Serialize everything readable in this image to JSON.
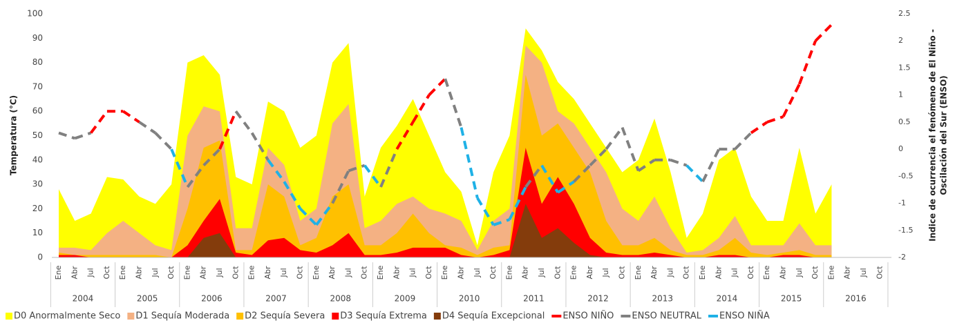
{
  "chart_data": {
    "type": "area",
    "ylabel": "Temperatura (°C)",
    "y2label": [
      "Indice de ocurrencia el fenómeno de El Niño -",
      "Oscilación del  Sur (ENSO)"
    ],
    "categories": [
      "Ene",
      "Abr",
      "Jul",
      "Oct",
      "Ene",
      "Abr",
      "Jul",
      "Oct",
      "Ene",
      "Abr",
      "Jul",
      "Oct",
      "Ene",
      "Abr",
      "Jul",
      "Oct",
      "Ene",
      "Abr",
      "Jul",
      "Oct",
      "Ene",
      "Abr",
      "Jul",
      "Oct",
      "Ene",
      "Abr",
      "Jul",
      "Oct",
      "Ene",
      "Abr",
      "Jul",
      "Oct",
      "Ene",
      "Abr",
      "Jul",
      "Oct",
      "Ene",
      "Abr",
      "Jul",
      "Oct",
      "Ene",
      "Abr",
      "Jul",
      "Oct",
      "Ene",
      "Abr",
      "Jul",
      "Oct",
      "Ene",
      "Abr",
      "Jul",
      "Oct"
    ],
    "years": [
      "2004",
      "2005",
      "2006",
      "2007",
      "2008",
      "2009",
      "2010",
      "2011",
      "2012",
      "2013",
      "2014",
      "2015",
      "2016"
    ],
    "ylim": [
      0,
      100
    ],
    "yticks": [
      0,
      10,
      20,
      30,
      40,
      50,
      60,
      70,
      80,
      90,
      100
    ],
    "y2lim": [
      -2,
      2.5
    ],
    "y2ticks": [
      -2,
      -1.5,
      -1,
      -0.5,
      0,
      0.5,
      1,
      1.5,
      2,
      2.5
    ],
    "series": [
      {
        "name": "D0 Anormalmente Seco",
        "color": "#ffff00",
        "values": [
          28,
          15,
          18,
          33,
          32,
          25,
          22,
          30,
          80,
          83,
          75,
          33,
          30,
          64,
          60,
          45,
          50,
          80,
          88,
          25,
          45,
          54,
          65,
          50,
          35,
          27,
          5,
          35,
          50,
          94,
          85,
          72,
          65,
          55,
          45,
          35,
          40,
          57,
          35,
          8,
          18,
          40,
          45,
          25,
          15,
          15,
          45,
          18,
          30,
          null,
          null,
          null
        ]
      },
      {
        "name": "D1 Sequía Moderada",
        "color": "#f4b183",
        "values": [
          4,
          4,
          3,
          10,
          15,
          10,
          5,
          3,
          50,
          62,
          60,
          12,
          12,
          45,
          38,
          15,
          20,
          55,
          63,
          12,
          15,
          22,
          25,
          20,
          18,
          15,
          3,
          15,
          20,
          87,
          80,
          60,
          55,
          45,
          35,
          20,
          15,
          25,
          12,
          2,
          3,
          8,
          17,
          5,
          5,
          5,
          14,
          5,
          5,
          null,
          null,
          null
        ]
      },
      {
        "name": "D2 Sequía Severa",
        "color": "#ffc000",
        "values": [
          2,
          1,
          1,
          1,
          1,
          1,
          1,
          0,
          20,
          45,
          48,
          3,
          3,
          30,
          25,
          5,
          8,
          25,
          30,
          5,
          5,
          10,
          18,
          10,
          5,
          4,
          1,
          4,
          5,
          75,
          50,
          55,
          45,
          35,
          15,
          5,
          5,
          8,
          3,
          1,
          1,
          3,
          8,
          2,
          1,
          2,
          3,
          1,
          1,
          null,
          null,
          null
        ]
      },
      {
        "name": "D3 Sequía Extrema",
        "color": "#ff0000",
        "values": [
          1,
          1,
          0,
          0,
          0,
          0,
          0,
          0,
          5,
          15,
          24,
          2,
          1,
          7,
          8,
          3,
          2,
          5,
          10,
          1,
          1,
          2,
          4,
          4,
          4,
          1,
          0,
          1,
          3,
          45,
          22,
          33,
          22,
          8,
          2,
          1,
          1,
          2,
          1,
          0,
          0,
          1,
          1,
          0,
          0,
          1,
          1,
          0,
          0,
          null,
          null,
          null
        ]
      },
      {
        "name": "D4 Sequía Excepcional",
        "color": "#843c0c",
        "values": [
          0,
          0,
          0,
          0,
          0,
          0,
          0,
          0,
          0,
          8,
          10,
          0,
          0,
          0,
          0,
          0,
          0,
          0,
          0,
          0,
          0,
          0,
          0,
          0,
          0,
          0,
          0,
          0,
          0,
          22,
          8,
          12,
          6,
          1,
          0,
          0,
          0,
          0,
          0,
          0,
          0,
          0,
          0,
          0,
          0,
          0,
          0,
          0,
          0,
          null,
          null,
          null
        ]
      }
    ],
    "enso": {
      "axis": "y2",
      "phases": [
        {
          "name": "ENSO NIÑO",
          "color": "#ff0000"
        },
        {
          "name": "ENSO NEUTRAL",
          "color": "#808080"
        },
        {
          "name": "ENSO NIÑA",
          "color": "#1fb1e6"
        }
      ],
      "values": [
        0.3,
        0.2,
        0.3,
        0.7,
        0.7,
        0.5,
        0.3,
        0,
        -0.7,
        -0.3,
        0,
        0.7,
        0.3,
        -0.2,
        -0.6,
        -1.1,
        -1.4,
        -1,
        -0.4,
        -0.3,
        -0.7,
        0,
        0.5,
        1,
        1.3,
        0.4,
        -0.9,
        -1.4,
        -1.3,
        -0.7,
        -0.3,
        -0.8,
        -0.6,
        -0.3,
        0,
        0.4,
        -0.4,
        -0.2,
        -0.2,
        -0.3,
        -0.6,
        0,
        0,
        0.3,
        0.5,
        0.6,
        1.2,
        2,
        2.3,
        null,
        null,
        null
      ],
      "phase": [
        1,
        1,
        1,
        0,
        0,
        0,
        1,
        1,
        2,
        1,
        1,
        0,
        1,
        1,
        2,
        2,
        2,
        2,
        1,
        1,
        2,
        1,
        0,
        0,
        0,
        1,
        2,
        2,
        2,
        2,
        1,
        2,
        2,
        1,
        1,
        1,
        1,
        1,
        1,
        1,
        2,
        1,
        1,
        1,
        0,
        0,
        0,
        0,
        0,
        null,
        null,
        null
      ]
    }
  }
}
